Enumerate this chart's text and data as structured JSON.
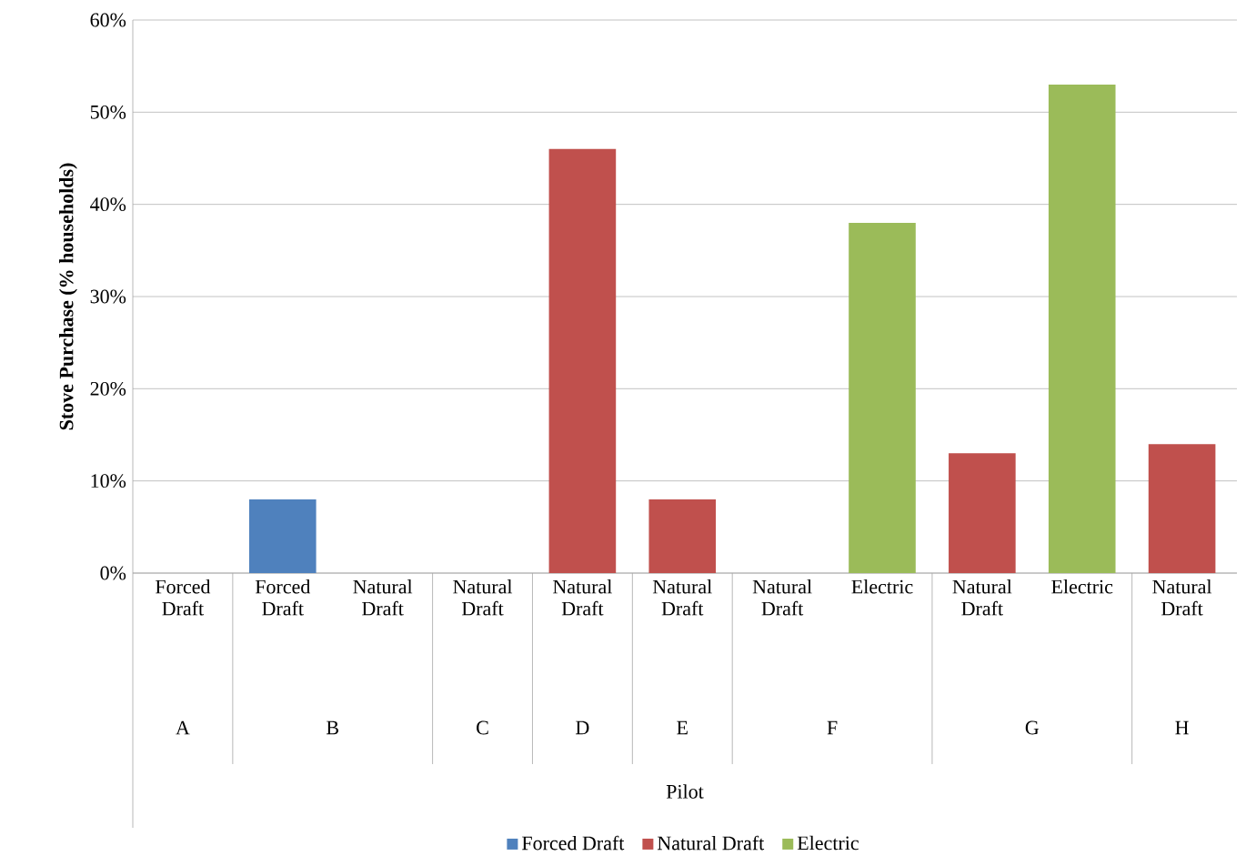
{
  "chart_data": {
    "type": "bar",
    "ylabel": "Stove Purchase (% households)",
    "categories": [
      "Forced Draft",
      "Forced Draft",
      "Natural Draft",
      "Natural Draft",
      "Natural Draft",
      "Natural Draft",
      "Natural Draft",
      "Electric",
      "Natural Draft",
      "Electric",
      "Natural Draft"
    ],
    "series": [
      {
        "name": "Forced Draft",
        "color": "#4f81bd",
        "values": [
          0,
          8,
          null,
          null,
          null,
          null,
          null,
          null,
          null,
          null,
          null
        ]
      },
      {
        "name": "Natural Draft",
        "color": "#c0504d",
        "values": [
          null,
          null,
          0,
          0,
          46,
          8,
          0,
          null,
          13,
          null,
          14
        ]
      },
      {
        "name": "Electric",
        "color": "#9bbb59",
        "values": [
          null,
          null,
          null,
          null,
          null,
          null,
          null,
          38,
          null,
          53,
          null
        ]
      }
    ],
    "annotations": [
      "A",
      "B",
      "C",
      "D",
      "E",
      "F",
      "G",
      "H",
      "Pilot"
    ],
    "ylim": [
      0,
      60
    ],
    "yticks": [
      {
        "value": 0,
        "label": "0%"
      },
      {
        "value": 10,
        "label": "10%"
      },
      {
        "value": 20,
        "label": "20%"
      },
      {
        "value": 30,
        "label": "30%"
      },
      {
        "value": 40,
        "label": "40%"
      },
      {
        "value": 50,
        "label": "50%"
      },
      {
        "value": 60,
        "label": "60%"
      }
    ],
    "grid": "y",
    "legend": "bottom"
  }
}
